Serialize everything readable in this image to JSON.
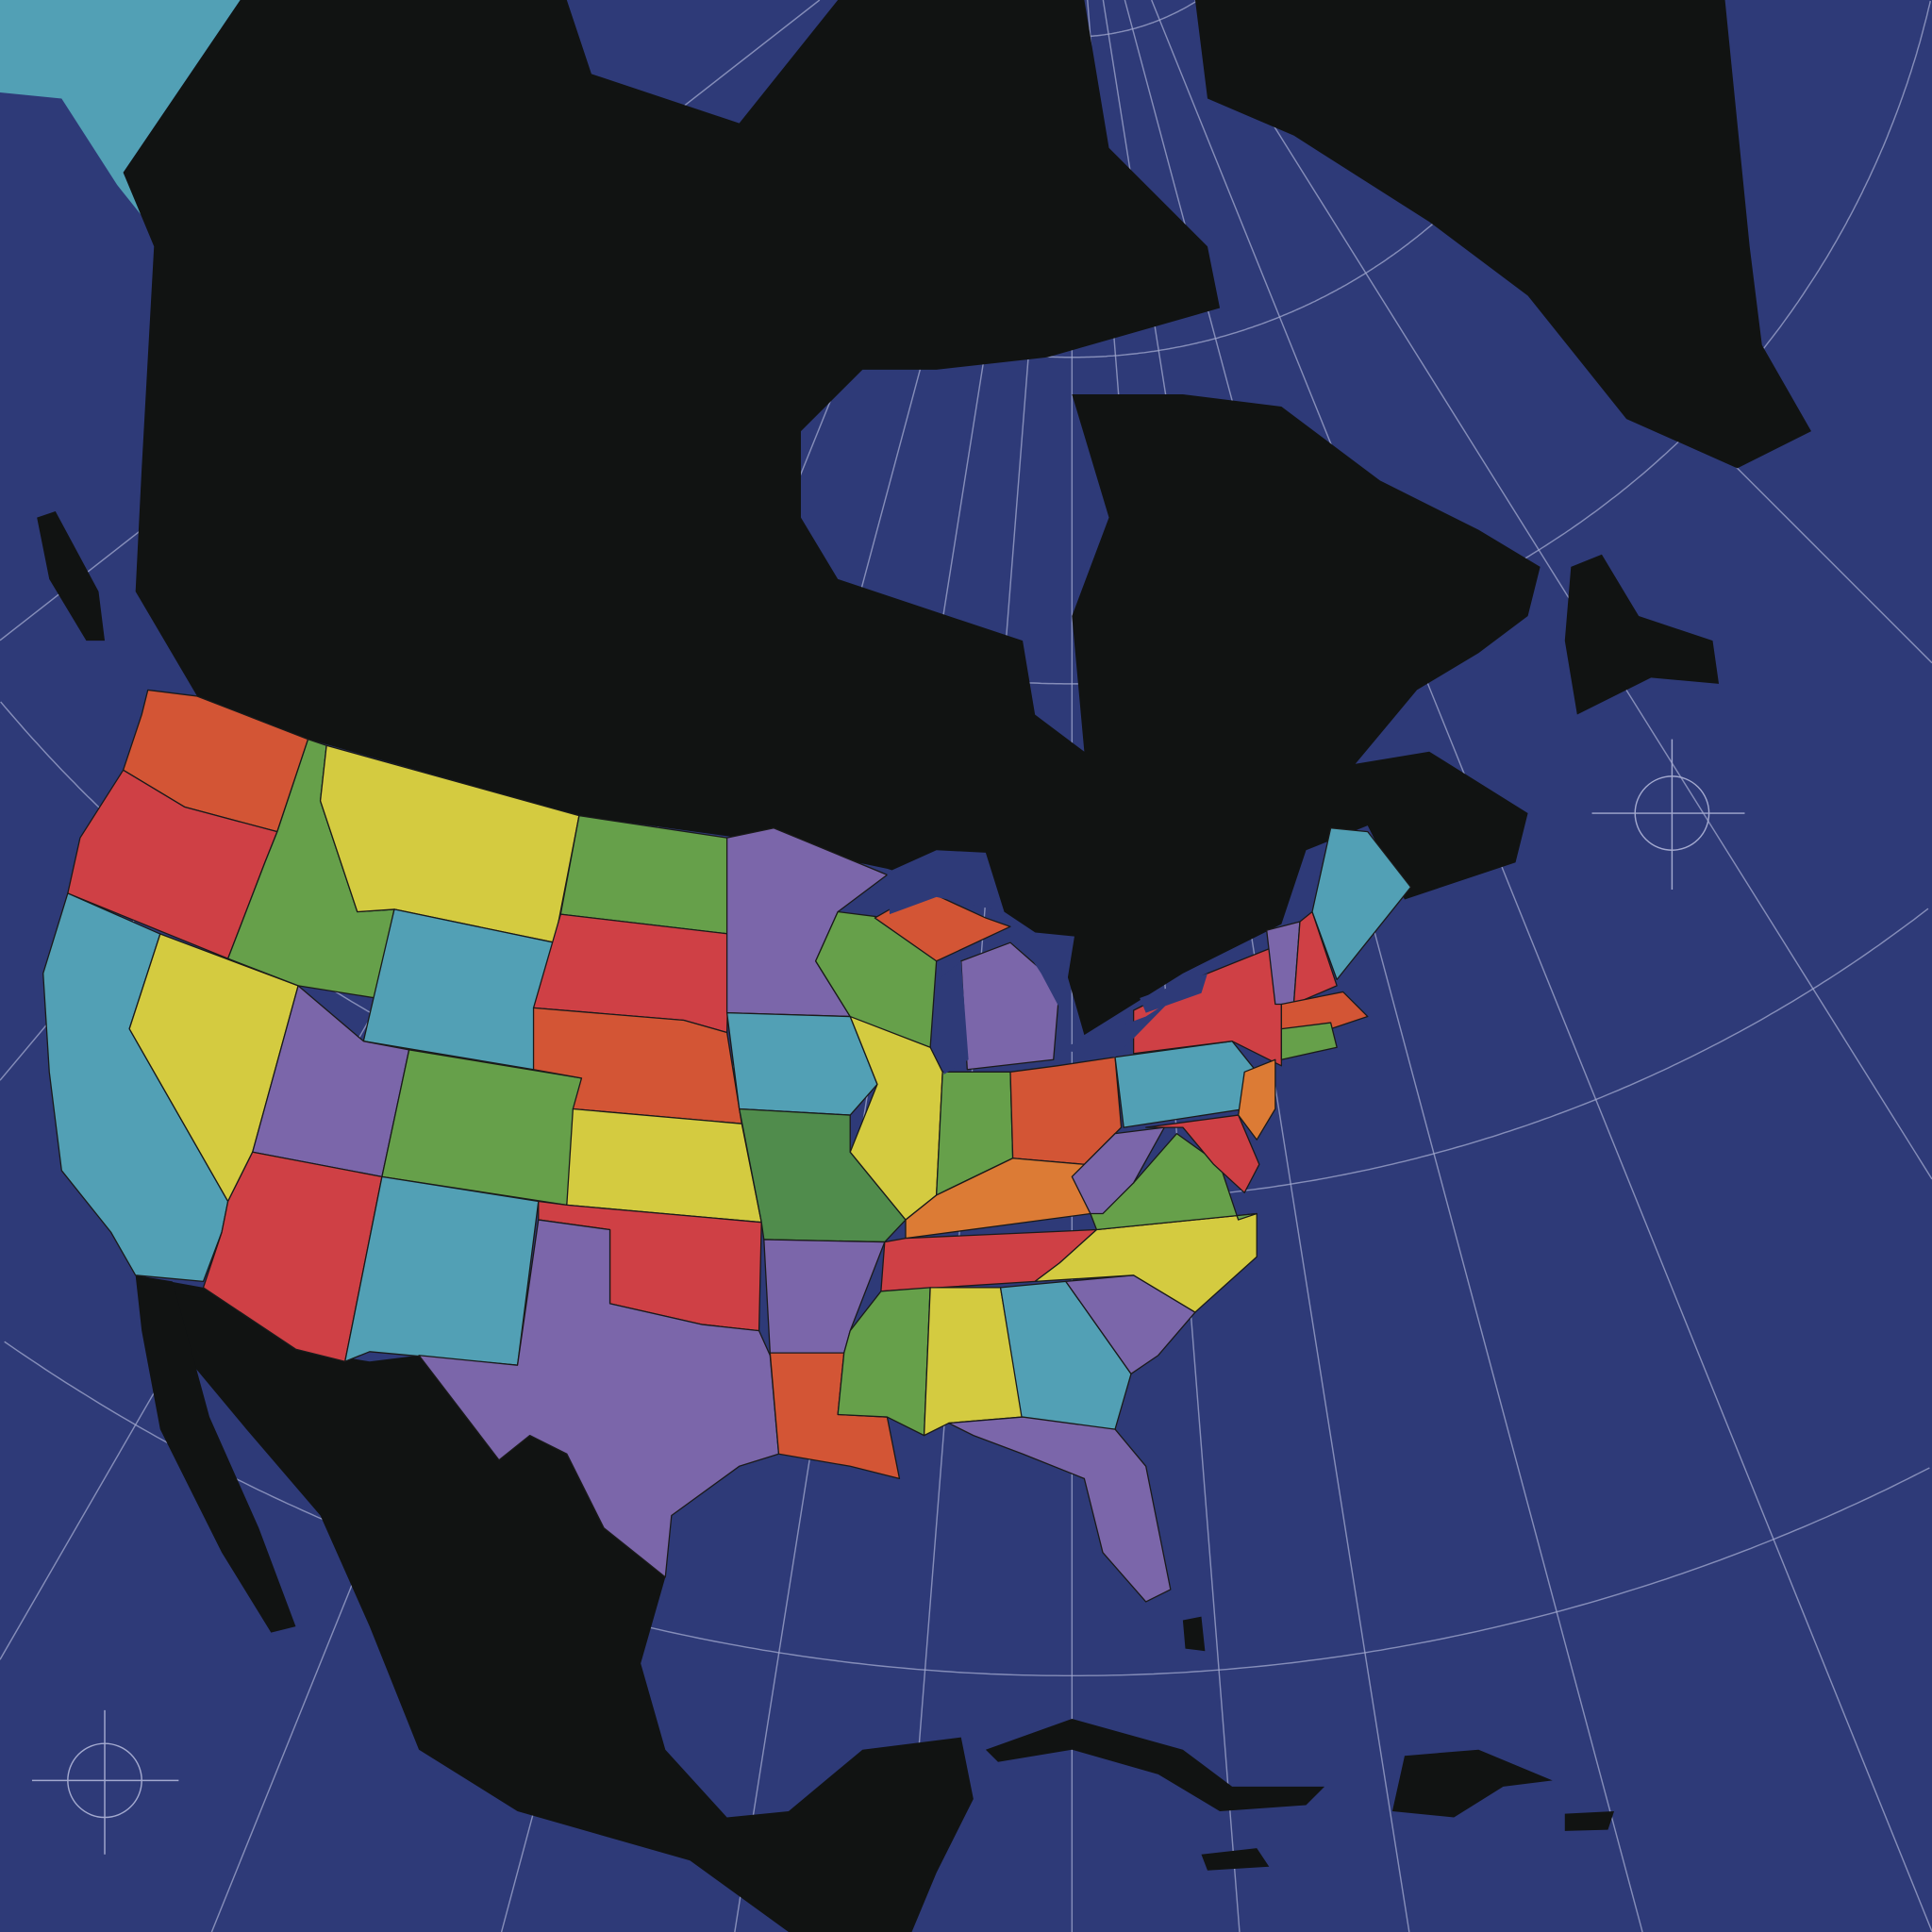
{
  "colors": {
    "ocean": "#2e3a78",
    "land": "#111312",
    "graticule": "#a3a9cf",
    "red": "#cf4045",
    "vermilion": "#d35535",
    "orange": "#dc7b35",
    "yellow": "#d4cb40",
    "green": "#66a04a",
    "dark_green": "#508c4c",
    "teal": "#52a0b5",
    "purple": "#7b66aa"
  },
  "graticule": {
    "meridians": 14,
    "parallels": 5,
    "visible": true
  },
  "crosshair_markers": 2
}
